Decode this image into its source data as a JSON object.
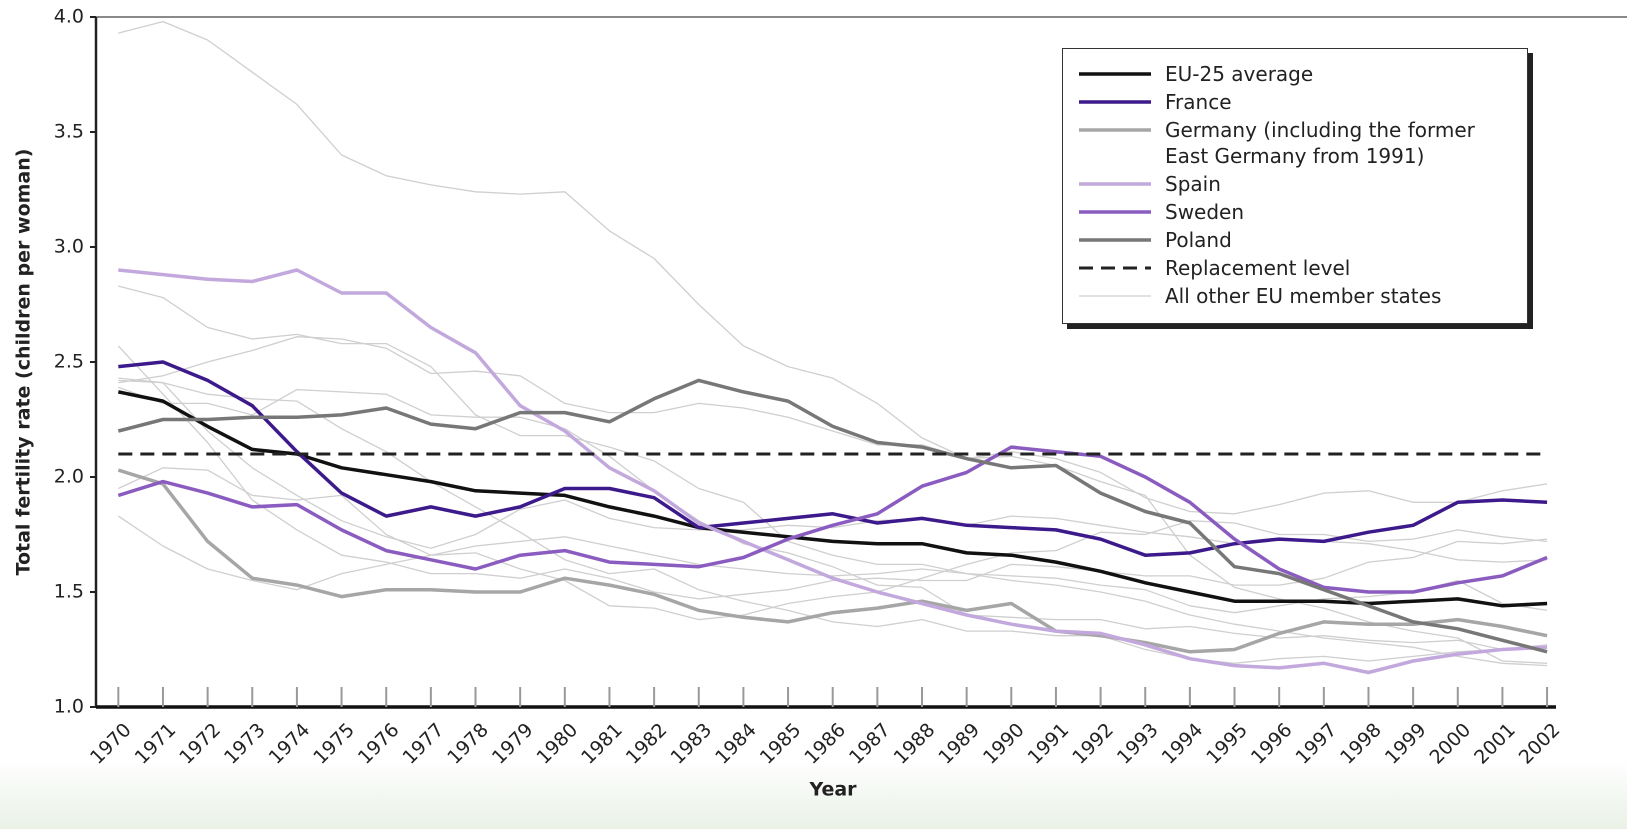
{
  "chart_data": {
    "type": "line",
    "x_label": "Year",
    "y_label": "Total fertility rate (children per woman)",
    "x": [
      1970,
      1971,
      1972,
      1973,
      1974,
      1975,
      1976,
      1977,
      1978,
      1979,
      1980,
      1981,
      1982,
      1983,
      1984,
      1985,
      1986,
      1987,
      1988,
      1989,
      1990,
      1991,
      1992,
      1993,
      1994,
      1995,
      1996,
      1997,
      1998,
      1999,
      2000,
      2001,
      2002
    ],
    "xlim": [
      1969.5,
      2002.2
    ],
    "ylim": [
      1,
      4
    ],
    "yticks": [
      {
        "value": 1,
        "label": "1.0"
      },
      1.5,
      {
        "value": 2,
        "label": "2.0"
      },
      2.5,
      {
        "value": 3,
        "label": "3.0"
      },
      3.5,
      {
        "value": 4,
        "label": "4.0"
      }
    ],
    "grid": false,
    "legend": "top-right",
    "series": [
      {
        "name": "EU-25 average",
        "color": "#111111",
        "width": 3.5,
        "values": [
          2.37,
          2.33,
          2.22,
          2.12,
          2.1,
          2.04,
          2.01,
          1.98,
          1.94,
          1.93,
          1.92,
          1.87,
          1.83,
          1.78,
          1.76,
          1.74,
          1.72,
          1.71,
          1.71,
          1.67,
          1.66,
          1.63,
          1.59,
          1.54,
          1.5,
          1.46,
          1.46,
          1.46,
          1.45,
          1.46,
          1.47,
          1.44,
          1.45
        ]
      },
      {
        "name": "France",
        "color": "#3d1a8c",
        "width": 3.5,
        "values": [
          2.48,
          2.5,
          2.42,
          2.31,
          2.11,
          1.93,
          1.83,
          1.87,
          1.83,
          1.87,
          1.95,
          1.95,
          1.91,
          1.78,
          1.8,
          1.82,
          1.84,
          1.8,
          1.82,
          1.79,
          1.78,
          1.77,
          1.73,
          1.66,
          1.67,
          1.71,
          1.73,
          1.72,
          1.76,
          1.79,
          1.89,
          1.9,
          1.89
        ]
      },
      {
        "name": "Germany (including the former East Germany from 1991)",
        "color": "#a6a6a6",
        "width": 3.5,
        "values": [
          2.03,
          1.97,
          1.72,
          1.56,
          1.53,
          1.48,
          1.51,
          1.51,
          1.5,
          1.5,
          1.56,
          1.53,
          1.49,
          1.42,
          1.39,
          1.37,
          1.41,
          1.43,
          1.46,
          1.42,
          1.45,
          1.33,
          1.31,
          1.28,
          1.24,
          1.25,
          1.32,
          1.37,
          1.36,
          1.36,
          1.38,
          1.35,
          1.31
        ]
      },
      {
        "name": "Spain",
        "color": "#c2a8dc",
        "width": 3.5,
        "values": [
          2.9,
          2.88,
          2.86,
          2.85,
          2.9,
          2.8,
          2.8,
          2.65,
          2.54,
          2.31,
          2.2,
          2.04,
          1.94,
          1.8,
          1.72,
          1.64,
          1.56,
          1.5,
          1.45,
          1.4,
          1.36,
          1.33,
          1.32,
          1.27,
          1.21,
          1.18,
          1.17,
          1.19,
          1.15,
          1.2,
          1.23,
          1.25,
          1.26
        ]
      },
      {
        "name": "Sweden",
        "color": "#8a5cc0",
        "width": 3.5,
        "values": [
          1.92,
          1.98,
          1.93,
          1.87,
          1.88,
          1.77,
          1.68,
          1.64,
          1.6,
          1.66,
          1.68,
          1.63,
          1.62,
          1.61,
          1.65,
          1.73,
          1.79,
          1.84,
          1.96,
          2.02,
          2.13,
          2.11,
          2.09,
          2.0,
          1.89,
          1.73,
          1.6,
          1.52,
          1.5,
          1.5,
          1.54,
          1.57,
          1.65
        ]
      },
      {
        "name": "Poland",
        "color": "#777777",
        "width": 3.5,
        "values": [
          2.2,
          2.25,
          2.25,
          2.26,
          2.26,
          2.27,
          2.3,
          2.23,
          2.21,
          2.28,
          2.28,
          2.24,
          2.34,
          2.42,
          2.37,
          2.33,
          2.22,
          2.15,
          2.13,
          2.08,
          2.04,
          2.05,
          1.93,
          1.85,
          1.8,
          1.61,
          1.58,
          1.51,
          1.44,
          1.37,
          1.34,
          1.29,
          1.24
        ]
      },
      {
        "name": "Replacement level",
        "color": "#222222",
        "width": 3,
        "dash": true,
        "values": [
          2.1,
          2.1,
          2.1,
          2.1,
          2.1,
          2.1,
          2.1,
          2.1,
          2.1,
          2.1,
          2.1,
          2.1,
          2.1,
          2.1,
          2.1,
          2.1,
          2.1,
          2.1,
          2.1,
          2.1,
          2.1,
          2.1,
          2.1,
          2.1,
          2.1,
          2.1,
          2.1,
          2.1,
          2.1,
          2.1,
          2.1,
          2.1,
          2.1
        ]
      },
      {
        "name": "All other EU member states",
        "color": "#cfcfcf",
        "width": 1.3,
        "lines": [
          [
            3.93,
            3.98,
            3.9,
            3.76,
            3.62,
            3.4,
            3.31,
            3.27,
            3.24,
            3.23,
            3.24,
            3.07,
            2.95,
            2.75,
            2.57,
            2.48,
            2.43,
            2.32,
            2.17,
            2.08,
            2.11,
            2.08,
            2.02,
            1.91,
            1.85,
            1.84,
            1.88,
            1.93,
            1.94,
            1.89,
            1.89,
            1.94,
            1.97
          ],
          [
            2.83,
            2.78,
            2.65,
            2.6,
            2.62,
            2.58,
            2.58,
            2.48,
            2.27,
            2.18,
            2.18,
            2.13,
            2.07,
            1.95,
            1.89,
            1.72,
            1.66,
            1.62,
            1.62,
            1.58,
            1.57,
            1.56,
            1.53,
            1.51,
            1.44,
            1.41,
            1.44,
            1.47,
            1.48,
            1.5,
            1.55,
            1.45,
            1.42
          ],
          [
            2.42,
            2.41,
            2.36,
            2.34,
            2.33,
            2.21,
            2.11,
            1.98,
            1.87,
            1.76,
            1.64,
            1.58,
            1.6,
            1.51,
            1.46,
            1.42,
            1.37,
            1.35,
            1.38,
            1.33,
            1.33,
            1.31,
            1.31,
            1.25,
            1.21,
            1.19,
            1.21,
            1.22,
            1.2,
            1.22,
            1.24,
            1.25,
            1.27
          ],
          [
            2.57,
            2.36,
            2.15,
            1.9,
            1.77,
            1.66,
            1.63,
            1.58,
            1.58,
            1.56,
            1.6,
            1.56,
            1.5,
            1.47,
            1.49,
            1.51,
            1.55,
            1.56,
            1.55,
            1.55,
            1.62,
            1.61,
            1.59,
            1.57,
            1.57,
            1.53,
            1.53,
            1.56,
            1.63,
            1.65,
            1.72,
            1.71,
            1.73
          ],
          [
            2.43,
            2.41,
            2.2,
            2.04,
            1.92,
            1.81,
            1.74,
            1.69,
            1.75,
            1.86,
            1.9,
            1.82,
            1.78,
            1.77,
            1.77,
            1.79,
            1.78,
            1.81,
            1.82,
            1.79,
            1.83,
            1.82,
            1.79,
            1.76,
            1.74,
            1.71,
            1.73,
            1.72,
            1.71,
            1.68,
            1.64,
            1.63,
            1.64
          ],
          [
            2.39,
            2.32,
            2.32,
            2.27,
            2.38,
            2.37,
            2.36,
            2.27,
            2.26,
            2.26,
            2.21,
            2.09,
            1.94,
            1.81,
            1.71,
            1.67,
            1.61,
            1.53,
            1.52,
            1.4,
            1.39,
            1.38,
            1.38,
            1.34,
            1.35,
            1.32,
            1.3,
            1.31,
            1.29,
            1.28,
            1.29,
            1.25,
            1.27
          ],
          [
            1.95,
            2.04,
            2.03,
            1.92,
            1.9,
            1.92,
            1.75,
            1.66,
            1.67,
            1.6,
            1.55,
            1.44,
            1.43,
            1.38,
            1.4,
            1.45,
            1.48,
            1.5,
            1.56,
            1.62,
            1.67,
            1.68,
            1.76,
            1.75,
            1.81,
            1.8,
            1.75,
            1.75,
            1.72,
            1.73,
            1.77,
            1.74,
            1.72
          ],
          [
            2.41,
            2.44,
            2.5,
            2.55,
            2.61,
            2.6,
            2.56,
            2.45,
            2.46,
            2.44,
            2.32,
            2.28,
            2.28,
            2.32,
            2.3,
            2.26,
            2.2,
            2.14,
            2.14,
            2.08,
            2.09,
            2.05,
            1.98,
            1.92,
            1.66,
            1.52,
            1.47,
            1.43,
            1.37,
            1.33,
            1.3,
            1.2,
            1.19
          ],
          [
            1.83,
            1.7,
            1.6,
            1.55,
            1.51,
            1.58,
            1.62,
            1.66,
            1.7,
            1.72,
            1.74,
            1.7,
            1.66,
            1.62,
            1.6,
            1.58,
            1.57,
            1.58,
            1.6,
            1.58,
            1.55,
            1.53,
            1.5,
            1.46,
            1.4,
            1.36,
            1.33,
            1.3,
            1.28,
            1.26,
            1.22,
            1.19,
            1.18
          ]
        ]
      }
    ]
  }
}
